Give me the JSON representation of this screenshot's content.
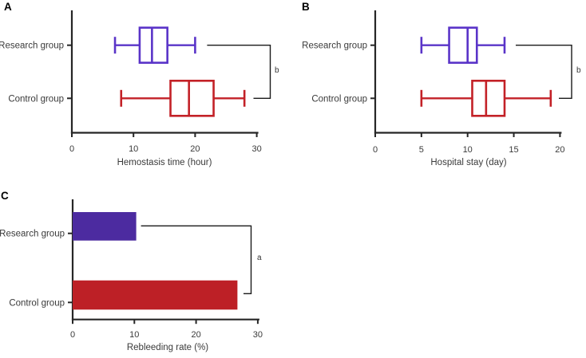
{
  "figure": {
    "background": "#ffffff",
    "text_color": "#3a3a3a",
    "axis_color": "#262626",
    "bracket_color": "#1a1a1a"
  },
  "chart_data": [
    {
      "panel": "A",
      "type": "boxplot",
      "orientation": "horizontal",
      "xlabel": "Hemostasis time (hour)",
      "xlim": [
        0,
        30
      ],
      "xticks": [
        "0",
        "10",
        "20",
        "30"
      ],
      "xtick_values": [
        0,
        10,
        20,
        30
      ],
      "categories": [
        "Research group",
        "Control group"
      ],
      "series": [
        {
          "name": "Research group",
          "color": "#5a34c8",
          "whisker_low": 7,
          "q1": 11,
          "median": 13,
          "q3": 15.5,
          "whisker_high": 20
        },
        {
          "name": "Control group",
          "color": "#c32127",
          "whisker_low": 8,
          "q1": 16,
          "median": 19,
          "q3": 23,
          "whisker_high": 28
        }
      ],
      "significance": {
        "label": "b",
        "between": [
          "Research group",
          "Control group"
        ]
      }
    },
    {
      "panel": "B",
      "type": "boxplot",
      "orientation": "horizontal",
      "xlabel": "Hospital stay (day)",
      "xlim": [
        0,
        20
      ],
      "xticks": [
        "0",
        "5",
        "10",
        "15",
        "20"
      ],
      "xtick_values": [
        0,
        5,
        10,
        15,
        20
      ],
      "categories": [
        "Research group",
        "Control group"
      ],
      "series": [
        {
          "name": "Research group",
          "color": "#5a34c8",
          "whisker_low": 5,
          "q1": 8,
          "median": 10,
          "q3": 11,
          "whisker_high": 14
        },
        {
          "name": "Control group",
          "color": "#c32127",
          "whisker_low": 5,
          "q1": 10.5,
          "median": 12,
          "q3": 14,
          "whisker_high": 19
        }
      ],
      "significance": {
        "label": "b",
        "between": [
          "Research group",
          "Control group"
        ]
      }
    },
    {
      "panel": "C",
      "type": "bar",
      "orientation": "horizontal",
      "xlabel": "Rebleeding rate (%)",
      "xlim": [
        0,
        30
      ],
      "xticks": [
        "0",
        "10",
        "20",
        "30"
      ],
      "xtick_values": [
        0,
        10,
        20,
        30
      ],
      "categories": [
        "Research group",
        "Control group"
      ],
      "values": [
        10.3,
        26.7
      ],
      "colors": [
        "#4c2ba0",
        "#bd2026"
      ],
      "significance": {
        "label": "a",
        "between": [
          "Research group",
          "Control group"
        ]
      }
    }
  ]
}
